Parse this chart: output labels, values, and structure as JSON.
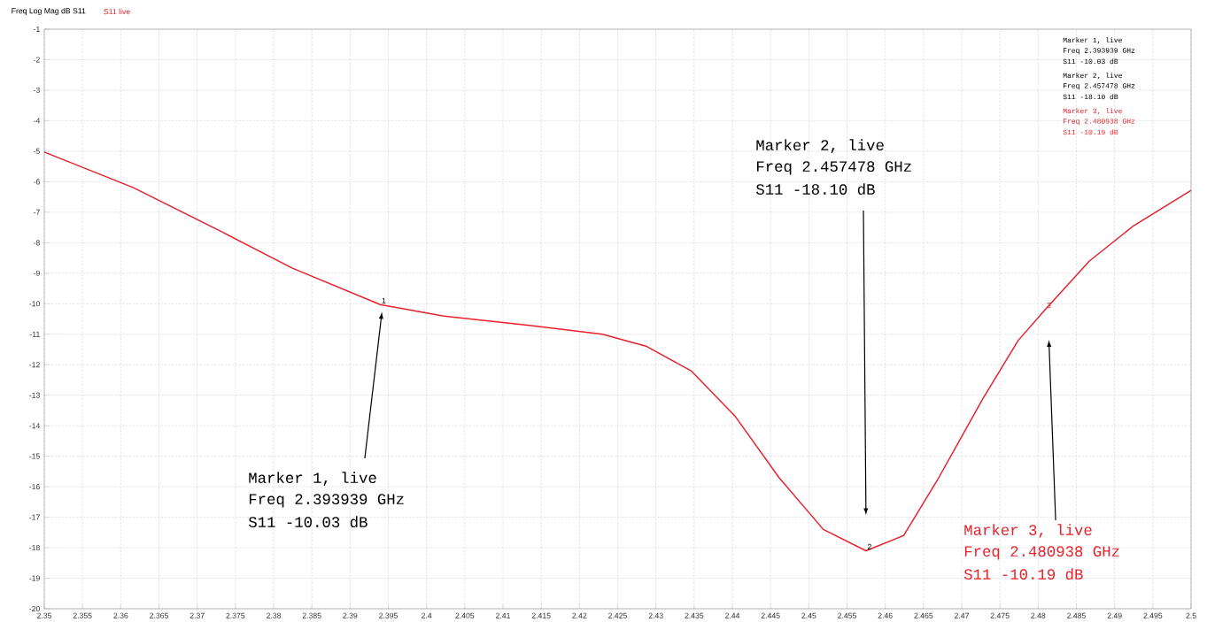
{
  "chart_data": {
    "type": "line",
    "title": "Freq Log Mag dB S11",
    "legend": "top left",
    "grid": true,
    "marker": "none",
    "line_style": "solid",
    "xlim": [
      2.35,
      2.5
    ],
    "ylim": [
      -20,
      -1
    ],
    "xticks": [
      2.35,
      2.355,
      2.36,
      2.365,
      2.37,
      2.375,
      2.38,
      2.385,
      2.39,
      2.395,
      2.4,
      2.405,
      2.41,
      2.415,
      2.42,
      2.425,
      2.43,
      2.435,
      2.44,
      2.445,
      2.45,
      2.455,
      2.46,
      2.465,
      2.47,
      2.475,
      2.48,
      2.485,
      2.49,
      2.495,
      2.5
    ],
    "yticks": [
      -1,
      -2,
      -3,
      -4,
      -5,
      -6,
      -7,
      -8,
      -9,
      -10,
      -11,
      -12,
      -13,
      -14,
      -15,
      -16,
      -17,
      -18,
      -19,
      -20
    ],
    "series": [
      {
        "name": "S11 live",
        "color": "#e8202a",
        "x": [
          2.35,
          2.3616,
          2.3732,
          2.3824,
          2.393939,
          2.4021,
          2.4137,
          2.423,
          2.4288,
          2.4346,
          2.4404,
          2.4461,
          2.4519,
          2.457478,
          2.4624,
          2.467,
          2.4728,
          2.4774,
          2.480938,
          2.4867,
          2.4925,
          2.5
        ],
        "values": [
          -5.03,
          -6.19,
          -7.64,
          -8.83,
          -10.03,
          -10.4,
          -10.72,
          -11.0,
          -11.4,
          -12.2,
          -13.7,
          -15.7,
          -17.4,
          -18.1,
          -17.6,
          -15.7,
          -13.1,
          -11.2,
          -10.19,
          -8.6,
          -7.44,
          -6.28
        ]
      }
    ],
    "annotations": [
      {
        "text": "1",
        "x": 2.393939,
        "y": -10.03
      },
      {
        "text": "2",
        "x": 2.457478,
        "y": -18.1
      },
      {
        "text": "3",
        "x": 2.480938,
        "y": -10.19
      },
      "Marker 1, live",
      "Freq    2.393939 GHz",
      "S11     -10.03 dB",
      "Marker 2, live",
      "Freq    2.457478 GHz",
      "S11     -18.10 dB",
      "Marker 3, live",
      "Freq    2.480938 GHz",
      "S11     -10.19 dB",
      "Marker 1, live",
      "Freq    2.393939 GHz",
      "S11     -10.03 dB",
      "Marker 2, live",
      "Freq    2.457478 GHz",
      "S11     -18.10 dB",
      "Marker 3, live",
      "Freq    2.480938 GHz",
      "S11     -10.19 dB"
    ]
  }
}
